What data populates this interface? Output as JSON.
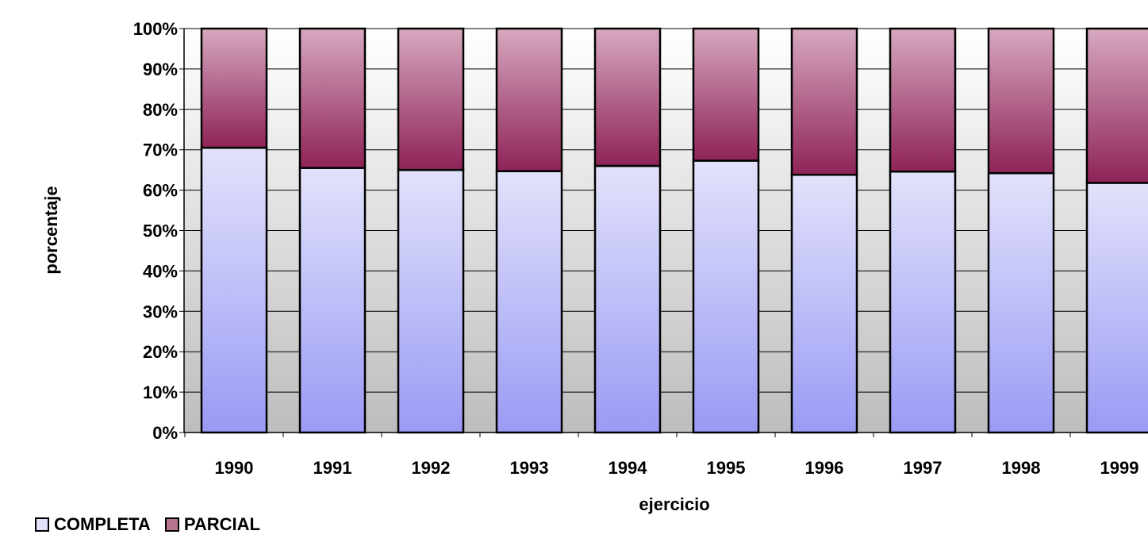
{
  "chart_data": {
    "type": "bar",
    "stacked": "percent",
    "title": "",
    "xlabel": "ejercicio",
    "ylabel": "porcentaje",
    "categories": [
      "1990",
      "1991",
      "1992",
      "1993",
      "1994",
      "1995",
      "1996",
      "1997",
      "1998",
      "1999"
    ],
    "series": [
      {
        "name": "COMPLETA",
        "color": "#A6A6F7",
        "values": [
          70.5,
          65.5,
          65,
          64.7,
          66,
          67.3,
          63.8,
          64.6,
          64.2,
          61.8
        ]
      },
      {
        "name": "PARCIAL",
        "color": "#9B2F60",
        "values": [
          29.5,
          34.5,
          35,
          35.3,
          34,
          32.7,
          36.2,
          35.4,
          35.8,
          38.2
        ]
      }
    ],
    "ylim": [
      0,
      100
    ],
    "yticks": [
      "0%",
      "10%",
      "20%",
      "30%",
      "40%",
      "50%",
      "60%",
      "70%",
      "80%",
      "90%",
      "100%"
    ],
    "grid": true,
    "legend_position": "bottom-left"
  }
}
